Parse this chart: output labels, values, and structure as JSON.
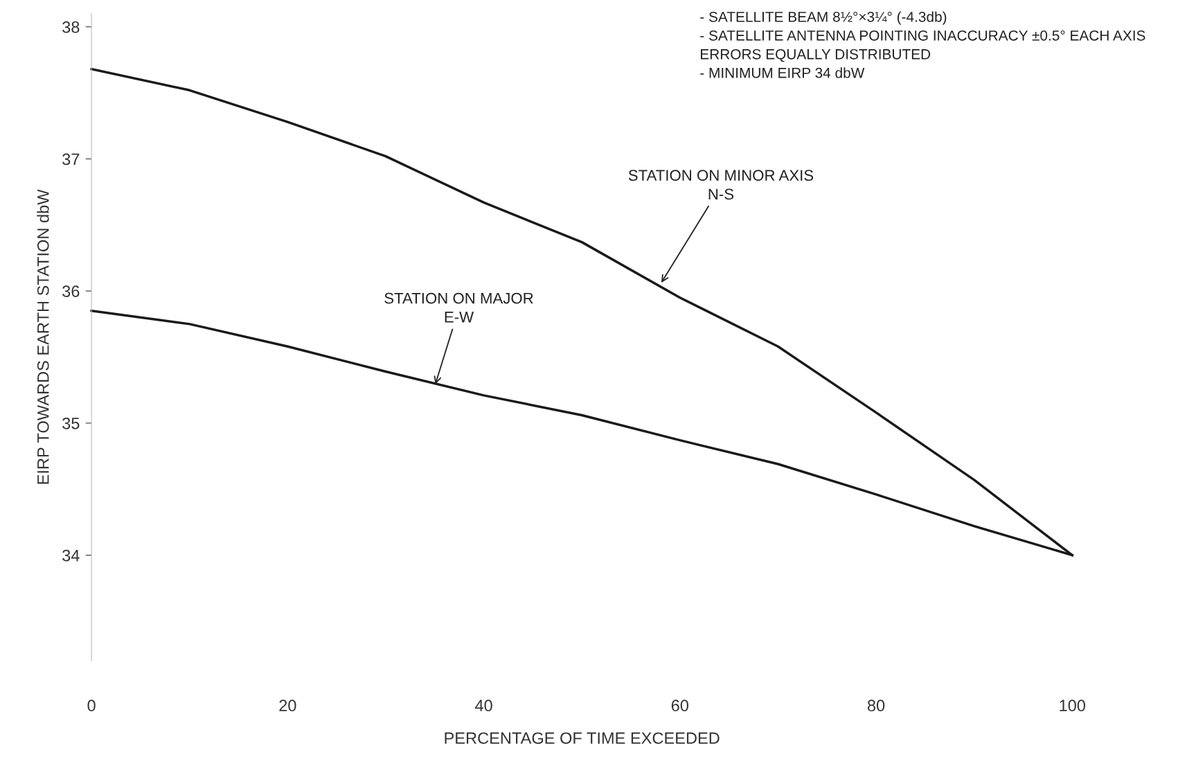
{
  "chart_data": {
    "type": "line",
    "xlabel": "PERCENTAGE OF TIME EXCEEDED",
    "ylabel": "EIRP TOWARDS EARTH STATION dbW",
    "x": [
      0,
      10,
      20,
      30,
      40,
      50,
      60,
      70,
      80,
      90,
      100
    ],
    "series": [
      {
        "color": "#1a1a1a",
        "values": [
          37.68,
          37.52,
          37.28,
          37.02,
          36.67,
          36.37,
          35.95,
          35.58,
          35.08,
          34.57,
          34.0
        ]
      },
      {
        "color": "#1a1a1a",
        "values": [
          35.85,
          35.75,
          35.58,
          35.39,
          35.21,
          35.06,
          34.87,
          34.69,
          34.46,
          34.22,
          34.0
        ]
      }
    ],
    "xlim": [
      0,
      100
    ],
    "xticks": [
      0,
      20,
      40,
      60,
      80,
      100
    ],
    "ylim": [
      33.2,
      38.1
    ],
    "yticks": [
      34,
      35,
      36,
      37,
      38
    ],
    "grid": false,
    "legend": false,
    "marker": "none",
    "line_style": "solid",
    "annotations": [
      {
        "text": "STATION ON MINOR AXIS\nN-S",
        "x": 58,
        "y": 36.05
      },
      {
        "text": "STATION ON MAJOR\nE-W",
        "x": 35,
        "y": 35.28
      },
      "- SATELLITE BEAM 8½°×3¼° (-4.3db)",
      "- SATELLITE ANTENNA POINTING INACCURACY ±0.5° EACH AXIS ERRORS EQUALLY DISTRIBUTED",
      "- MINIMUM EIRP 34 dbW"
    ]
  }
}
